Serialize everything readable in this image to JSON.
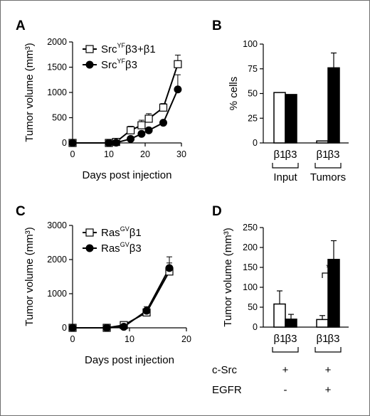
{
  "panels": {
    "A": {
      "letter": "A"
    },
    "B": {
      "letter": "B"
    },
    "C": {
      "letter": "C"
    },
    "D": {
      "letter": "D"
    }
  },
  "chart_data": [
    {
      "id": "A",
      "type": "line",
      "xlabel": "Days post injection",
      "ylabel": "Tumor volume (mm³)",
      "xlim": [
        0,
        30
      ],
      "ylim": [
        0,
        2000
      ],
      "xticks": [
        0,
        10,
        20,
        30
      ],
      "yticks": [
        0,
        500,
        1000,
        1500,
        2000
      ],
      "legend_position": "top-left",
      "series": [
        {
          "name_main": "Src",
          "name_sup": "YF",
          "name_rest": "β3+β1",
          "marker": "open-square",
          "x": [
            0,
            10,
            12,
            16,
            19,
            21,
            25,
            29
          ],
          "y": [
            0,
            0,
            20,
            250,
            350,
            480,
            700,
            1560
          ],
          "err": [
            0,
            0,
            20,
            80,
            100,
            100,
            80,
            180
          ]
        },
        {
          "name_main": "Src",
          "name_sup": "YF",
          "name_rest": "β3",
          "marker": "filled-circle",
          "x": [
            0,
            10,
            12,
            16,
            19,
            21,
            25,
            29
          ],
          "y": [
            0,
            0,
            5,
            80,
            180,
            250,
            400,
            1060
          ],
          "err": [
            0,
            0,
            10,
            20,
            30,
            40,
            40,
            290
          ]
        }
      ]
    },
    {
      "id": "B",
      "type": "bar",
      "ylabel": "% cells",
      "ylim": [
        0,
        100
      ],
      "yticks": [
        0,
        25,
        50,
        75,
        100
      ],
      "groups": [
        {
          "label": "Input",
          "categories": [
            "β1",
            "β3"
          ],
          "values": [
            51,
            49
          ],
          "err": [
            0,
            0
          ]
        },
        {
          "label": "Tumors",
          "categories": [
            "β1",
            "β3"
          ],
          "values": [
            2,
            76
          ],
          "err": [
            0,
            15
          ]
        }
      ]
    },
    {
      "id": "C",
      "type": "line",
      "xlabel": "Days post injection",
      "ylabel": "Tumor volume (mm³)",
      "xlim": [
        0,
        20
      ],
      "ylim": [
        0,
        3000
      ],
      "xticks": [
        0,
        10,
        20
      ],
      "yticks": [
        0,
        1000,
        2000,
        3000
      ],
      "legend_position": "top-left",
      "series": [
        {
          "name_main": "Ras",
          "name_sup": "GV",
          "name_rest": "β1",
          "marker": "open-square",
          "x": [
            0,
            6,
            9,
            13,
            17
          ],
          "y": [
            0,
            0,
            80,
            450,
            1650
          ],
          "err": [
            0,
            0,
            60,
            120,
            250
          ]
        },
        {
          "name_main": "Ras",
          "name_sup": "GV",
          "name_rest": "β3",
          "marker": "filled-circle",
          "x": [
            0,
            6,
            9,
            13,
            17
          ],
          "y": [
            0,
            0,
            30,
            500,
            1750
          ],
          "err": [
            0,
            0,
            30,
            120,
            330
          ]
        }
      ]
    },
    {
      "id": "D",
      "type": "bar",
      "ylabel": "Tumor volume (mm³)",
      "ylim": [
        0,
        250
      ],
      "yticks": [
        0,
        50,
        100,
        150,
        200,
        250
      ],
      "groups": [
        {
          "categories": [
            "β1",
            "β3"
          ],
          "values": [
            58,
            20
          ],
          "err": [
            33,
            12
          ]
        },
        {
          "categories": [
            "β1",
            "β3"
          ],
          "values": [
            19,
            170
          ],
          "err": [
            10,
            47
          ]
        }
      ],
      "significance": "*",
      "conditions": [
        {
          "label": "c-Src",
          "values": [
            "+",
            "+"
          ]
        },
        {
          "label": "EGFR",
          "values": [
            "-",
            "+"
          ]
        }
      ]
    }
  ]
}
